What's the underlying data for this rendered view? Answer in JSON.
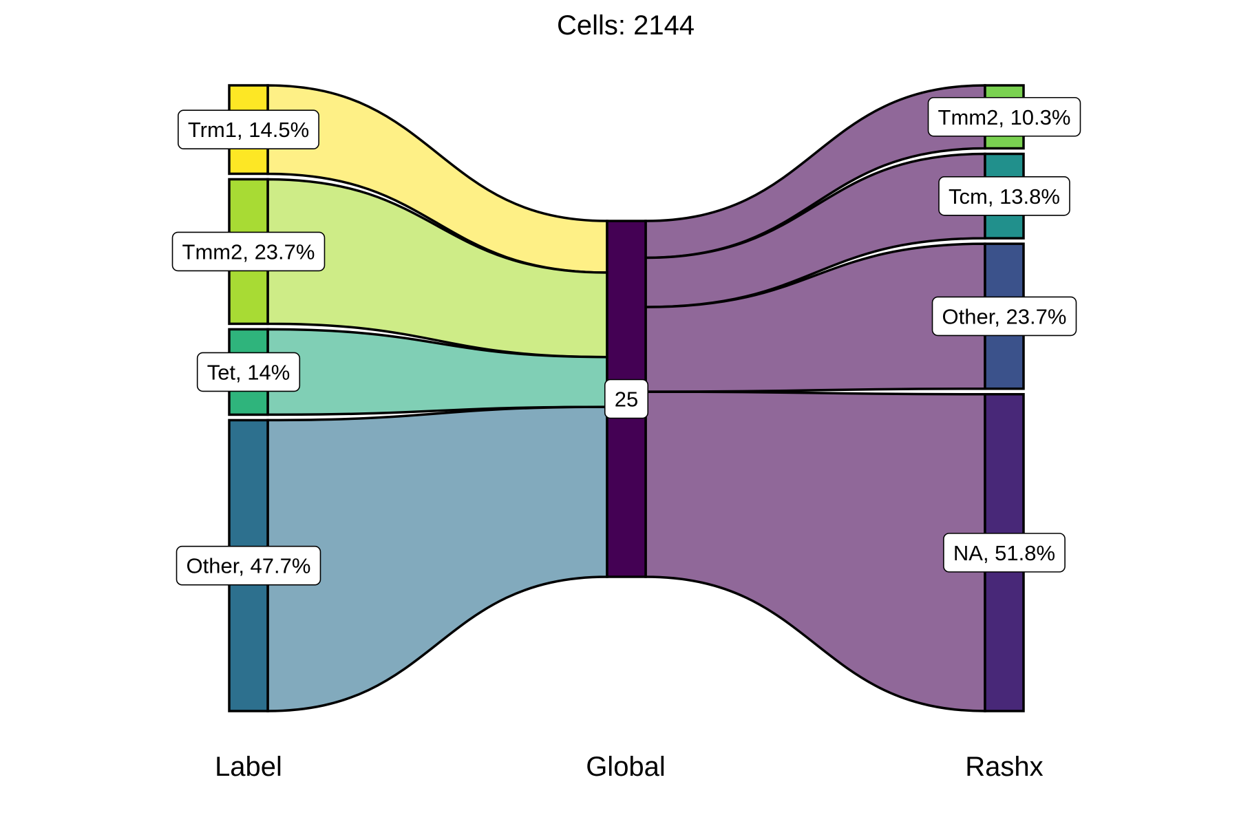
{
  "chart_data": {
    "type": "sankey",
    "title": "Cells:  2144",
    "axes": [
      {
        "name": "Label",
        "nodes": [
          {
            "name": "Trm1",
            "label": "Trm1, 14.5%",
            "share": 0.145,
            "color": "#FDE725"
          },
          {
            "name": "Tmm2",
            "label": "Tmm2, 23.7%",
            "share": 0.237,
            "color": "#A8DB34"
          },
          {
            "name": "Tet",
            "label": "Tet, 14%",
            "share": 0.14,
            "color": "#2FB47C"
          },
          {
            "name": "Other",
            "label": "Other, 47.7%",
            "share": 0.477,
            "color": "#2D708E"
          }
        ]
      },
      {
        "name": "Global",
        "nodes": [
          {
            "name": "25",
            "label": "25",
            "share": 1.0,
            "color": "#440154"
          }
        ]
      },
      {
        "name": "Rashx",
        "nodes": [
          {
            "name": "Tmm2",
            "label": "Tmm2, 10.3%",
            "share": 0.103,
            "color": "#7AD151"
          },
          {
            "name": "Tcm",
            "label": "Tcm, 13.8%",
            "share": 0.138,
            "color": "#21908C"
          },
          {
            "name": "Other",
            "label": "Other, 23.7%",
            "share": 0.237,
            "color": "#3B528B"
          },
          {
            "name": "NA",
            "label": "NA, 51.8%",
            "share": 0.518,
            "color": "#482878"
          }
        ]
      }
    ],
    "left_flows": [
      {
        "from": "Trm1",
        "to": "25",
        "share": 0.145,
        "color": "#FEF086"
      },
      {
        "from": "Tmm2",
        "to": "25",
        "share": 0.237,
        "color": "#CEEC87"
      },
      {
        "from": "Tet",
        "to": "25",
        "share": 0.14,
        "color": "#80CFB5"
      },
      {
        "from": "Other",
        "to": "25",
        "share": 0.477,
        "color": "#82AABD"
      }
    ],
    "right_flows": [
      {
        "from": "25",
        "to": "Tmm2",
        "share": 0.103,
        "color": "#906899"
      },
      {
        "from": "25",
        "to": "Tcm",
        "share": 0.138,
        "color": "#906899"
      },
      {
        "from": "25",
        "to": "Other",
        "share": 0.237,
        "color": "#906899"
      },
      {
        "from": "25",
        "to": "NA",
        "share": 0.518,
        "color": "#906899"
      }
    ]
  }
}
